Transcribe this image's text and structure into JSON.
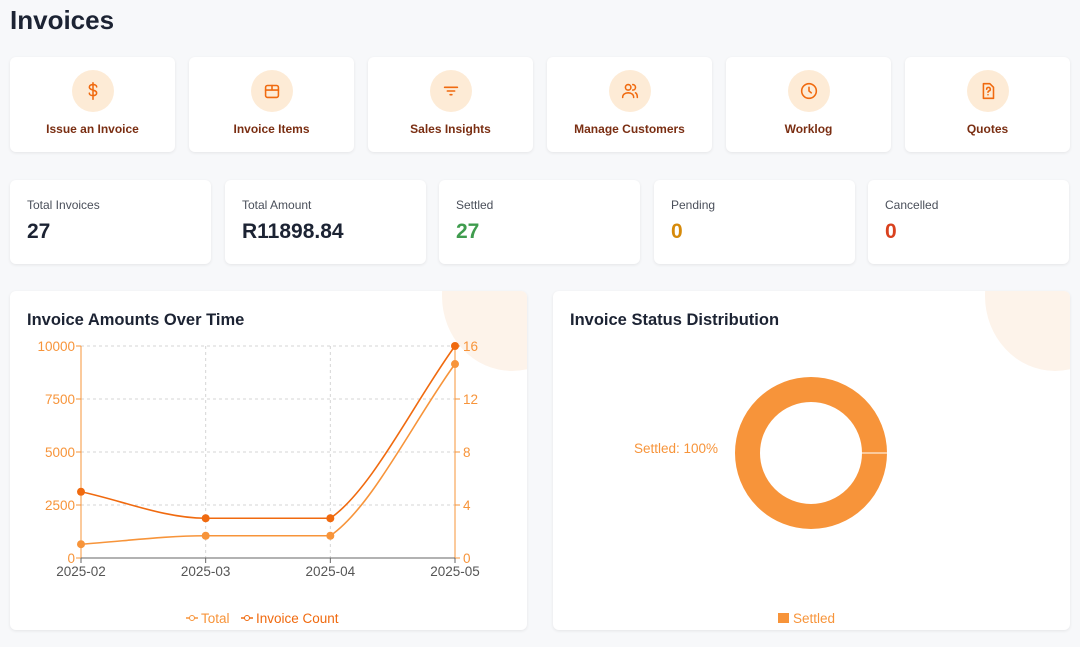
{
  "page_title": "Invoices",
  "actions": [
    {
      "label": "Issue an Invoice",
      "icon": "dollar-icon"
    },
    {
      "label": "Invoice Items",
      "icon": "package-icon"
    },
    {
      "label": "Sales Insights",
      "icon": "filter-icon"
    },
    {
      "label": "Manage Customers",
      "icon": "users-icon"
    },
    {
      "label": "Worklog",
      "icon": "clock-icon"
    },
    {
      "label": "Quotes",
      "icon": "file-question-icon"
    }
  ],
  "stats": [
    {
      "label": "Total Invoices",
      "value": "27",
      "color": "#1c2333"
    },
    {
      "label": "Total Amount",
      "value": "R11898.84",
      "color": "#1c2333"
    },
    {
      "label": "Settled",
      "value": "27",
      "color": "#3f9c4e"
    },
    {
      "label": "Pending",
      "value": "0",
      "color": "#d68a0a"
    },
    {
      "label": "Cancelled",
      "value": "0",
      "color": "#d9411e"
    }
  ],
  "chart_data": [
    {
      "type": "line",
      "title": "Invoice Amounts Over Time",
      "categories": [
        "2025-02",
        "2025-03",
        "2025-04",
        "2025-05"
      ],
      "y_left": {
        "range": [
          0,
          10000
        ],
        "ticks": [
          "0",
          "2500",
          "5000",
          "7500",
          "10000"
        ]
      },
      "y_right": {
        "range": [
          0,
          16
        ],
        "ticks": [
          "0",
          "4",
          "8",
          "12",
          "16"
        ]
      },
      "grid": true,
      "legend": "bottom",
      "series": [
        {
          "name": "Total",
          "axis": "left",
          "values": [
            650,
            1050,
            1050,
            9150
          ],
          "color": "#f7943a"
        },
        {
          "name": "Invoice Count",
          "axis": "right",
          "values": [
            5,
            3,
            3,
            16
          ],
          "color": "#f06a0f"
        }
      ]
    },
    {
      "type": "pie",
      "title": "Invoice Status Distribution",
      "slices": [
        {
          "name": "Settled",
          "value": 100,
          "label": "Settled: 100%",
          "color": "#f7943a"
        }
      ],
      "legend": "bottom"
    }
  ]
}
